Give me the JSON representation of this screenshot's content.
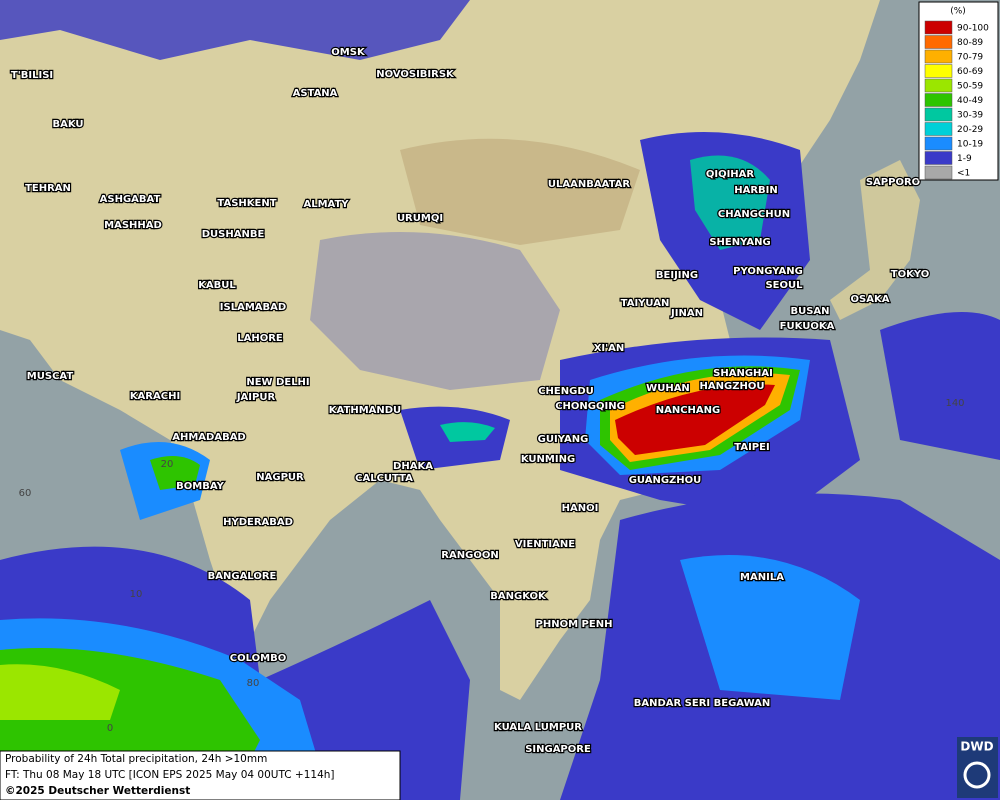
{
  "legend": {
    "title": "(%)",
    "items": [
      {
        "label": "90-100",
        "color": "#cc0000"
      },
      {
        "label": "80-89",
        "color": "#ff6a00"
      },
      {
        "label": "70-79",
        "color": "#ffb000"
      },
      {
        "label": "60-69",
        "color": "#ffff00"
      },
      {
        "label": "50-59",
        "color": "#9be600"
      },
      {
        "label": "40-49",
        "color": "#2ec400"
      },
      {
        "label": "30-39",
        "color": "#00c8a0"
      },
      {
        "label": "20-29",
        "color": "#00d0d8"
      },
      {
        "label": "10-19",
        "color": "#1a8cff"
      },
      {
        "label": "1-9",
        "color": "#3a3ac8"
      },
      {
        "label": "<1",
        "color": "#a8a8a8"
      }
    ]
  },
  "cities": [
    "OMSK",
    "NOVOSIBIRSK",
    "ASTANA",
    "T'BILISI",
    "BAKU",
    "TEHRAN",
    "ASHGABAT",
    "MASHHAD",
    "TASHKENT",
    "ALMATY",
    "DUSHANBE",
    "URUMQI",
    "ULAANBAATAR",
    "QIQIHAR",
    "HARBIN",
    "CHANGCHUN",
    "SHENYANG",
    "BEIJING",
    "PYONGYANG",
    "SEOUL",
    "TOKYO",
    "SAPPORO",
    "OSAKA",
    "BUSAN",
    "FUKUOKA",
    "TAIYUAN",
    "JINAN",
    "XI'AN",
    "KABUL",
    "ISLAMABAD",
    "LAHORE",
    "NEW DELHI",
    "JAIPUR",
    "KARACHI",
    "MUSCAT",
    "AHMADABAD",
    "BOMBAY",
    "NAGPUR",
    "HYDERABAD",
    "BANGALORE",
    "COLOMBO",
    "KATHMANDU",
    "DHAKA",
    "CALCUTTA",
    "CHENGDU",
    "CHONGQING",
    "WUHAN",
    "SHANGHAI",
    "HANGZHOU",
    "NANCHANG",
    "GUIYANG",
    "KUNMING",
    "TAIPEI",
    "GUANGZHOU",
    "HANOI",
    "VIENTIANE",
    "RANGOON",
    "BANGKOK",
    "PHNOM PENH",
    "MANILA",
    "BANDAR SERI BEGAWAN",
    "KUALA LUMPUR",
    "SINGAPORE"
  ],
  "grid_labels": [
    "60",
    "20",
    "10",
    "80",
    "0",
    "140"
  ],
  "footer": {
    "line1": "Probability of 24h Total precipitation, 24h >10mm",
    "line2": "FT: Thu 08 May 18 UTC [ICON EPS 2025 May 04 00UTC +114h]",
    "line3": "©2025 Deutscher Wetterdienst"
  },
  "logo": "DWD"
}
